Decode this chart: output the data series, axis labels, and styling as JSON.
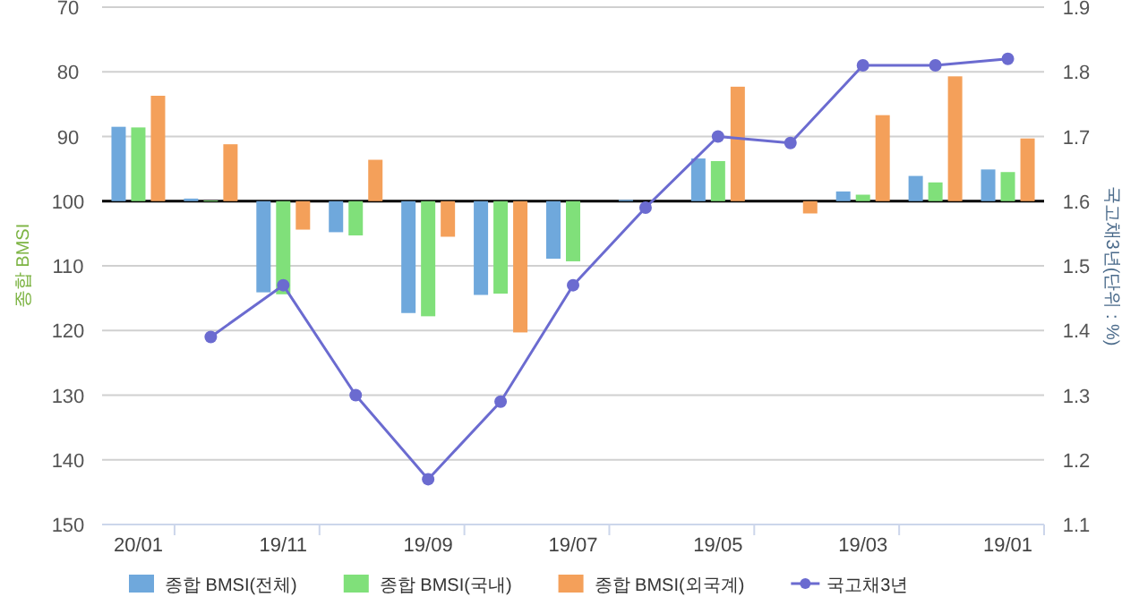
{
  "chart_data": {
    "type": "bar",
    "categories": [
      "20/01",
      null,
      "19/11",
      null,
      "19/09",
      null,
      "19/07",
      null,
      "19/05",
      null,
      "19/03",
      null,
      "19/01"
    ],
    "ylabel": "종합 BMSI",
    "y2label": "국고채3년(단위 : %)",
    "ylim": [
      150,
      70
    ],
    "yticks": [
      70,
      80,
      90,
      100,
      110,
      120,
      130,
      140,
      150
    ],
    "y2lim": [
      1.1,
      1.9
    ],
    "y2ticks": [
      1.1,
      1.2,
      1.3,
      1.4,
      1.5,
      1.6,
      1.7,
      1.8,
      1.9
    ],
    "grid": "y",
    "legend": "bottom",
    "ref_lines": [
      {
        "axis": "y",
        "value": 100,
        "color": "#000000"
      }
    ],
    "series": [
      {
        "name": "종합 BMSI(전체)",
        "color": "#6fa8dc",
        "base": [
          100,
          100,
          100,
          100,
          100,
          100,
          100,
          100,
          100,
          null,
          100,
          100,
          100
        ],
        "values": [
          -11.5,
          -0.4,
          14.1,
          4.8,
          17.3,
          14.5,
          8.9,
          -0.2,
          -6.6,
          null,
          -1.5,
          -3.9,
          -4.9
        ]
      },
      {
        "name": "종합 BMSI(국내)",
        "color": "#80e07a",
        "base": [
          100,
          100,
          100,
          100,
          100,
          100,
          100,
          null,
          100,
          null,
          100,
          100,
          100
        ],
        "values": [
          -11.4,
          -0.1,
          14.4,
          5.3,
          17.8,
          14.3,
          9.3,
          null,
          -6.2,
          null,
          -1.0,
          -2.9,
          -4.5
        ]
      },
      {
        "name": "종합 BMSI(외국계)",
        "color": "#f4a05a",
        "base": [
          100,
          100,
          100,
          100,
          100,
          100,
          null,
          null,
          100,
          100,
          100,
          100,
          100
        ],
        "values": [
          -16.3,
          -8.8,
          4.4,
          -6.4,
          5.5,
          20.3,
          null,
          null,
          -17.7,
          1.9,
          -13.3,
          -19.3,
          -9.7
        ]
      },
      {
        "name": "국고채3년",
        "type": "line",
        "axis": "y2",
        "color": "#6b6bd0",
        "marker": "circle",
        "values": [
          null,
          1.39,
          1.47,
          1.3,
          1.17,
          1.29,
          1.47,
          1.59,
          1.7,
          1.69,
          1.81,
          1.81,
          1.82
        ]
      }
    ]
  }
}
